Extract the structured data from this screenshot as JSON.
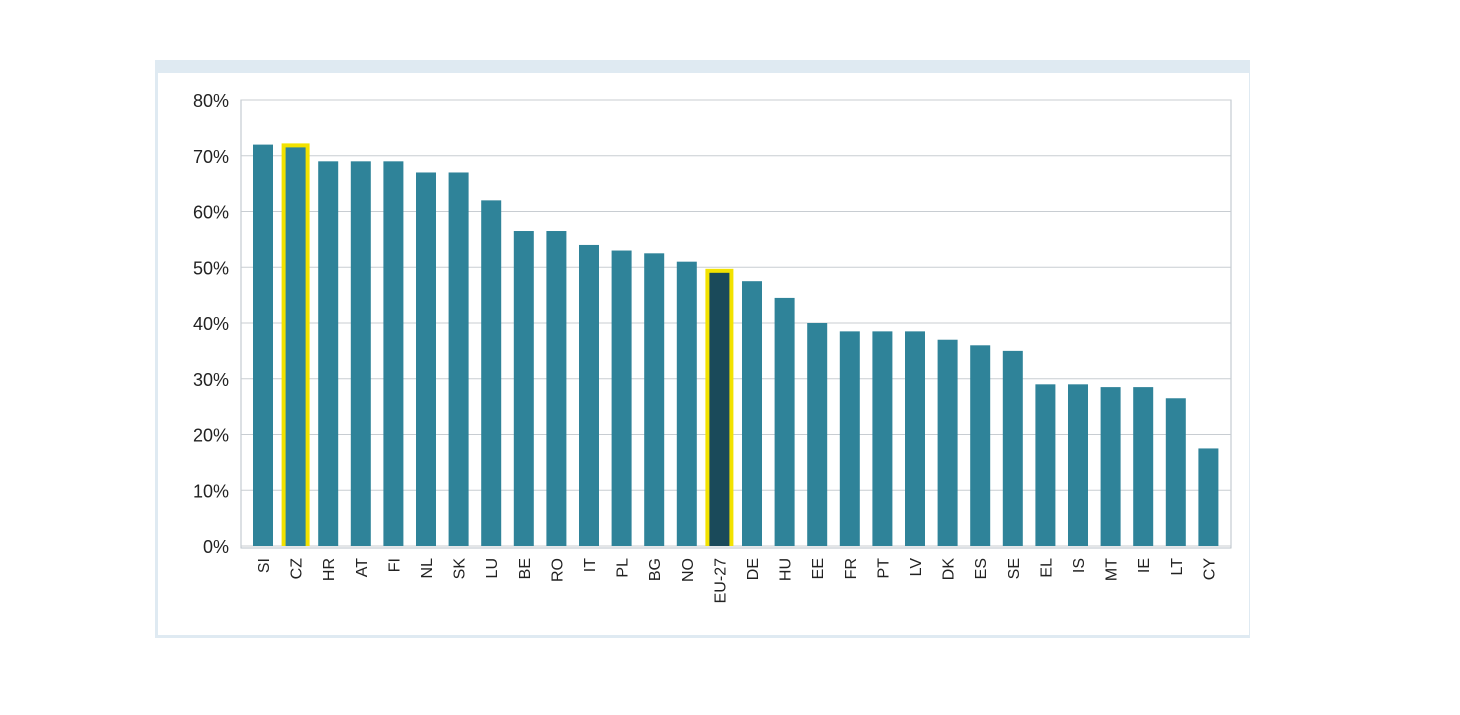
{
  "chart_data": {
    "type": "bar",
    "title": "",
    "xlabel": "",
    "ylabel": "",
    "ylim": [
      0,
      80
    ],
    "y_ticks": [
      "0%",
      "10%",
      "20%",
      "30%",
      "40%",
      "50%",
      "60%",
      "70%",
      "80%"
    ],
    "grid": true,
    "categories": [
      "SI",
      "CZ",
      "HR",
      "AT",
      "FI",
      "NL",
      "SK",
      "LU",
      "BE",
      "RO",
      "IT",
      "PL",
      "BG",
      "NO",
      "EU-27",
      "DE",
      "HU",
      "EE",
      "FR",
      "PT",
      "LV",
      "DK",
      "ES",
      "SE",
      "EL",
      "IS",
      "MT",
      "IE",
      "LT",
      "CY"
    ],
    "values": [
      72,
      71.5,
      69,
      69,
      69,
      67,
      67,
      62,
      56.5,
      56.5,
      54,
      53,
      52.5,
      51,
      49,
      47.5,
      44.5,
      40,
      38.5,
      38.5,
      38.5,
      37,
      36,
      35,
      29,
      29,
      28.5,
      28.5,
      26.5,
      17.5
    ],
    "highlighted": [
      "CZ",
      "EU-27"
    ],
    "colors": {
      "bar": "#2f8399",
      "bar_eu": "#1a4a5a",
      "highlight_border": "#f2e200"
    }
  }
}
